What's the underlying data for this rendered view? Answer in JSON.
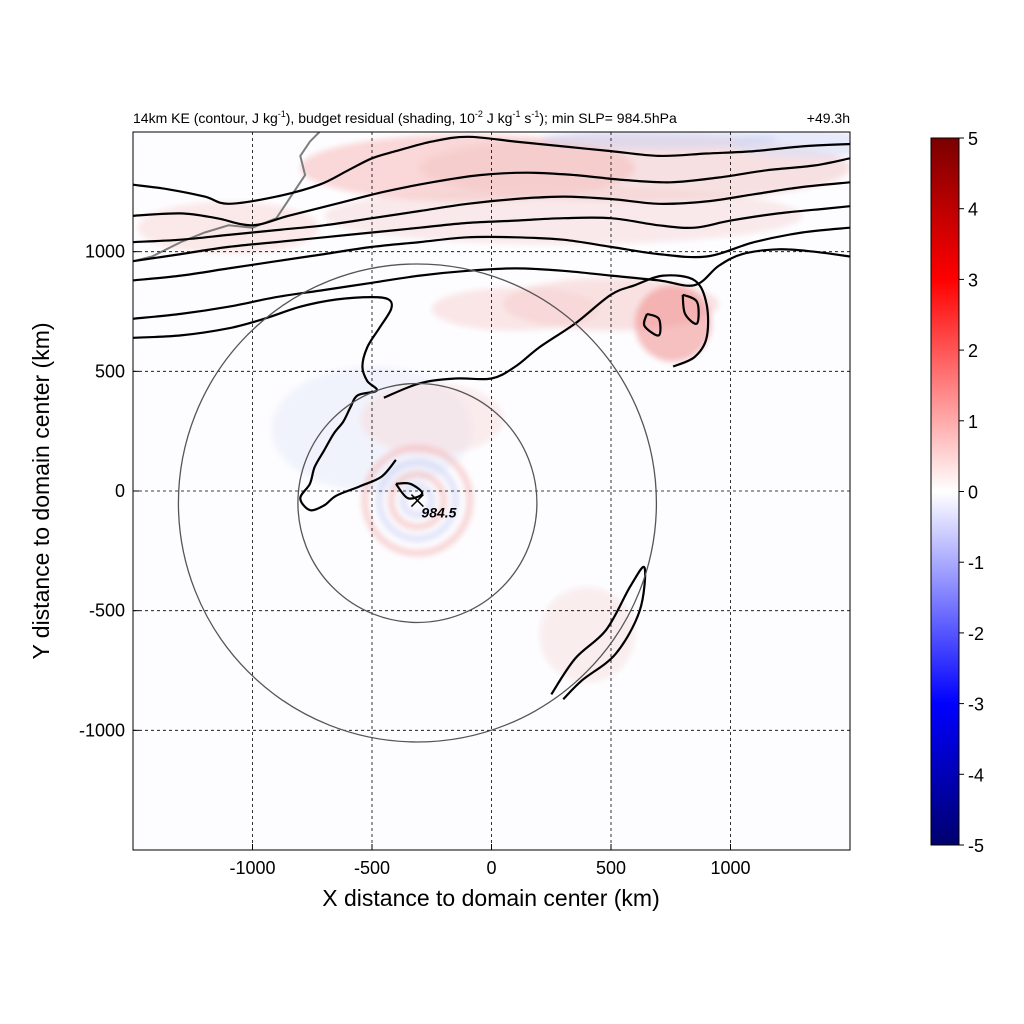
{
  "chart_data": {
    "type": "heatmap",
    "title": "14km KE (contour, J kg-1), budget residual (shading, 10-2 J kg-1 s-1); min SLP= 984.5hPa",
    "title_parts": {
      "a": "14km KE (contour, J kg",
      "a_sup": "-1",
      "b": "), budget residual (shading, 10",
      "b_sup": "-2",
      "c": " J kg",
      "c_sup": "-1",
      "d": " s",
      "d_sup": "-1",
      "e": "); min SLP= 984.5hPa"
    },
    "time_label": "+49.3h",
    "xlabel": "X distance to domain center (km)",
    "ylabel": "Y distance to domain center (km)",
    "xlim": [
      -1500,
      1500
    ],
    "ylim": [
      -1500,
      1500
    ],
    "xticks": [
      -1000,
      -500,
      0,
      500,
      1000
    ],
    "yticks": [
      -1000,
      -500,
      0,
      500,
      1000
    ],
    "xtick_labels": [
      "-1000",
      "-500",
      "0",
      "500",
      "1000"
    ],
    "ytick_labels": [
      "-1000",
      "-500",
      "0",
      "500",
      "1000"
    ],
    "grid": "dashed",
    "colorbar": {
      "min": -5,
      "max": 5,
      "ticks": [
        5,
        4,
        3,
        2,
        1,
        0,
        -1,
        -2,
        -3,
        -4,
        -5
      ],
      "tick_labels": [
        "5",
        "4",
        "3",
        "2",
        "1",
        "0",
        "-1",
        "-2",
        "-3",
        "-4",
        "-5"
      ],
      "colormap": [
        "#00006e",
        "#0000ff",
        "#ffffff",
        "#ff0000",
        "#7a0000"
      ]
    },
    "storm_center": {
      "x": -310,
      "y": -40,
      "min_slp_label": "984.5"
    },
    "range_rings": [
      {
        "cx": -310,
        "cy": -50,
        "r": 500
      },
      {
        "cx": -310,
        "cy": -50,
        "r": 1000
      }
    ],
    "ke_contours": [
      [
        [
          -1500,
          1280
        ],
        [
          -1350,
          1260
        ],
        [
          -1200,
          1230
        ],
        [
          -1100,
          1200
        ],
        [
          -900,
          1230
        ],
        [
          -720,
          1280
        ],
        [
          -600,
          1340
        ],
        [
          -500,
          1390
        ],
        [
          -400,
          1420
        ],
        [
          -250,
          1460
        ],
        [
          -100,
          1480
        ],
        [
          100,
          1460
        ],
        [
          300,
          1440
        ],
        [
          500,
          1420
        ],
        [
          700,
          1400
        ],
        [
          900,
          1410
        ],
        [
          1100,
          1420
        ],
        [
          1300,
          1440
        ],
        [
          1500,
          1450
        ]
      ],
      [
        [
          -1500,
          1150
        ],
        [
          -1300,
          1160
        ],
        [
          -1150,
          1140
        ],
        [
          -1000,
          1110
        ],
        [
          -850,
          1150
        ],
        [
          -650,
          1200
        ],
        [
          -450,
          1250
        ],
        [
          -250,
          1290
        ],
        [
          -50,
          1320
        ],
        [
          150,
          1330
        ],
        [
          350,
          1320
        ],
        [
          550,
          1300
        ],
        [
          750,
          1290
        ],
        [
          950,
          1310
        ],
        [
          1150,
          1340
        ],
        [
          1350,
          1360
        ],
        [
          1500,
          1390
        ]
      ],
      [
        [
          -1500,
          1040
        ],
        [
          -1300,
          1050
        ],
        [
          -1100,
          1070
        ],
        [
          -900,
          1090
        ],
        [
          -700,
          1110
        ],
        [
          -500,
          1140
        ],
        [
          -300,
          1170
        ],
        [
          -100,
          1200
        ],
        [
          100,
          1220
        ],
        [
          300,
          1230
        ],
        [
          500,
          1220
        ],
        [
          700,
          1200
        ],
        [
          900,
          1210
        ],
        [
          1100,
          1240
        ],
        [
          1300,
          1270
        ],
        [
          1500,
          1290
        ]
      ],
      [
        [
          -1500,
          960
        ],
        [
          -1300,
          990
        ],
        [
          -1100,
          1020
        ],
        [
          -900,
          1040
        ],
        [
          -700,
          1060
        ],
        [
          -500,
          1080
        ],
        [
          -300,
          1100
        ],
        [
          -100,
          1120
        ],
        [
          100,
          1130
        ],
        [
          300,
          1140
        ],
        [
          500,
          1140
        ],
        [
          700,
          1110
        ],
        [
          850,
          1100
        ],
        [
          1000,
          1130
        ],
        [
          1200,
          1160
        ],
        [
          1400,
          1180
        ],
        [
          1500,
          1190
        ]
      ],
      [
        [
          -1500,
          880
        ],
        [
          -1300,
          900
        ],
        [
          -1100,
          930
        ],
        [
          -900,
          960
        ],
        [
          -700,
          990
        ],
        [
          -500,
          1020
        ],
        [
          -300,
          1040
        ],
        [
          -100,
          1060
        ],
        [
          100,
          1060
        ],
        [
          300,
          1050
        ],
        [
          500,
          1020
        ],
        [
          700,
          990
        ],
        [
          900,
          980
        ],
        [
          1100,
          1040
        ],
        [
          1300,
          1080
        ],
        [
          1500,
          1100
        ]
      ],
      [
        [
          -1500,
          720
        ],
        [
          -1300,
          740
        ],
        [
          -1100,
          770
        ],
        [
          -900,
          810
        ],
        [
          -700,
          840
        ],
        [
          -500,
          870
        ],
        [
          -300,
          900
        ],
        [
          -100,
          920
        ],
        [
          100,
          930
        ],
        [
          300,
          920
        ],
        [
          500,
          900
        ],
        [
          700,
          880
        ],
        [
          850,
          860
        ],
        [
          950,
          940
        ],
        [
          1050,
          990
        ],
        [
          1200,
          1010
        ],
        [
          1350,
          1000
        ],
        [
          1500,
          980
        ]
      ],
      [
        [
          -1500,
          640
        ],
        [
          -1300,
          650
        ],
        [
          -1100,
          680
        ],
        [
          -950,
          720
        ],
        [
          -800,
          770
        ],
        [
          -650,
          800
        ],
        [
          -500,
          810
        ],
        [
          -430,
          800
        ],
        [
          -420,
          760
        ],
        [
          -470,
          680
        ],
        [
          -520,
          600
        ],
        [
          -540,
          520
        ],
        [
          -520,
          460
        ],
        [
          -480,
          420
        ],
        [
          -560,
          400
        ],
        [
          -590,
          350
        ],
        [
          -620,
          290
        ],
        [
          -660,
          240
        ],
        [
          -700,
          170
        ],
        [
          -740,
          100
        ],
        [
          -760,
          30
        ],
        [
          -800,
          -30
        ],
        [
          -760,
          -80
        ],
        [
          -700,
          -60
        ],
        [
          -650,
          -20
        ],
        [
          -550,
          20
        ],
        [
          -460,
          60
        ],
        [
          -400,
          130
        ]
      ]
    ]
  }
}
